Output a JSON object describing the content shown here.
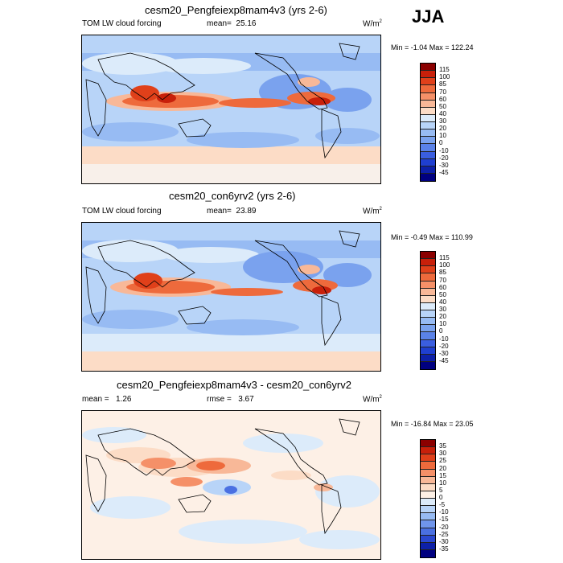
{
  "season": "JJA",
  "panels": [
    {
      "title": "cesm20_Pengfeiexp8mam4v3 (yrs 2-6)",
      "left_label": "TOM LW cloud forcing",
      "mean_label": "mean=",
      "mean_value": "25.16",
      "units_base": "W/m",
      "units_exp": "2",
      "minmax": "Min =  -1.04 Max = 122.24",
      "colorbar": {
        "labels": [
          "115",
          "100",
          "85",
          "70",
          "60",
          "50",
          "40",
          "30",
          "20",
          "10",
          "0",
          "-10",
          "-20",
          "-30",
          "-45"
        ],
        "colors": [
          "#8b0000",
          "#c8200a",
          "#e0401a",
          "#ee6a3c",
          "#f59068",
          "#f8b898",
          "#fcdcc6",
          "#dcebfa",
          "#b8d4f8",
          "#97bbf3",
          "#7aa2ee",
          "#5a82e8",
          "#3a5ee0",
          "#1f3fd0",
          "#0d20a8",
          "#000080"
        ]
      }
    },
    {
      "title": "cesm20_con6yrv2 (yrs 2-6)",
      "left_label": "TOM LW cloud forcing",
      "mean_label": "mean=",
      "mean_value": "23.89",
      "units_base": "W/m",
      "units_exp": "2",
      "minmax": "Min =  -0.49 Max = 110.99",
      "colorbar": {
        "labels": [
          "115",
          "100",
          "85",
          "70",
          "60",
          "50",
          "40",
          "30",
          "20",
          "10",
          "0",
          "-10",
          "-20",
          "-30",
          "-45"
        ],
        "colors": [
          "#8b0000",
          "#c8200a",
          "#e0401a",
          "#ee6a3c",
          "#f59068",
          "#f8b898",
          "#fcdcc6",
          "#dcebfa",
          "#b8d4f8",
          "#97bbf3",
          "#7aa2ee",
          "#5a82e8",
          "#3a5ee0",
          "#1f3fd0",
          "#0d20a8",
          "#000080"
        ]
      }
    },
    {
      "title": "cesm20_Pengfeiexp8mam4v3 - cesm20_con6yrv2",
      "left_label": "mean =",
      "left_value": "1.26",
      "mean_label": "rmse =",
      "mean_value": "3.67",
      "units_base": "W/m",
      "units_exp": "2",
      "minmax": "Min = -16.84 Max =  23.05",
      "colorbar": {
        "labels": [
          "35",
          "30",
          "25",
          "20",
          "15",
          "10",
          "5",
          "0",
          "-5",
          "-10",
          "-15",
          "-20",
          "-25",
          "-30",
          "-35"
        ],
        "colors": [
          "#8b0000",
          "#c8200a",
          "#e0401a",
          "#ee6a3c",
          "#f59068",
          "#f8b898",
          "#fcdcc6",
          "#fdf0e6",
          "#dcebfa",
          "#b8d4f8",
          "#97bbf3",
          "#6f95ec",
          "#4a70e2",
          "#2a48d0",
          "#0d20a8",
          "#000080"
        ]
      }
    }
  ],
  "chart_data": [
    {
      "type": "heatmap",
      "title": "cesm20_Pengfeiexp8mam4v3 (yrs 2-6)",
      "variable": "TOM LW cloud forcing",
      "mean": 25.16,
      "min": -1.04,
      "max": 122.24,
      "units": "W/m2",
      "levels": [
        -45,
        -30,
        -20,
        -10,
        0,
        10,
        20,
        30,
        40,
        50,
        60,
        70,
        85,
        100,
        115
      ]
    },
    {
      "type": "heatmap",
      "title": "cesm20_con6yrv2 (yrs 2-6)",
      "variable": "TOM LW cloud forcing",
      "mean": 23.89,
      "min": -0.49,
      "max": 110.99,
      "units": "W/m2",
      "levels": [
        -45,
        -30,
        -20,
        -10,
        0,
        10,
        20,
        30,
        40,
        50,
        60,
        70,
        85,
        100,
        115
      ]
    },
    {
      "type": "heatmap",
      "title": "cesm20_Pengfeiexp8mam4v3 - cesm20_con6yrv2",
      "mean": 1.26,
      "rmse": 3.67,
      "min": -16.84,
      "max": 23.05,
      "units": "W/m2",
      "levels": [
        -35,
        -30,
        -25,
        -20,
        -15,
        -10,
        -5,
        0,
        5,
        10,
        15,
        20,
        25,
        30,
        35
      ]
    }
  ]
}
